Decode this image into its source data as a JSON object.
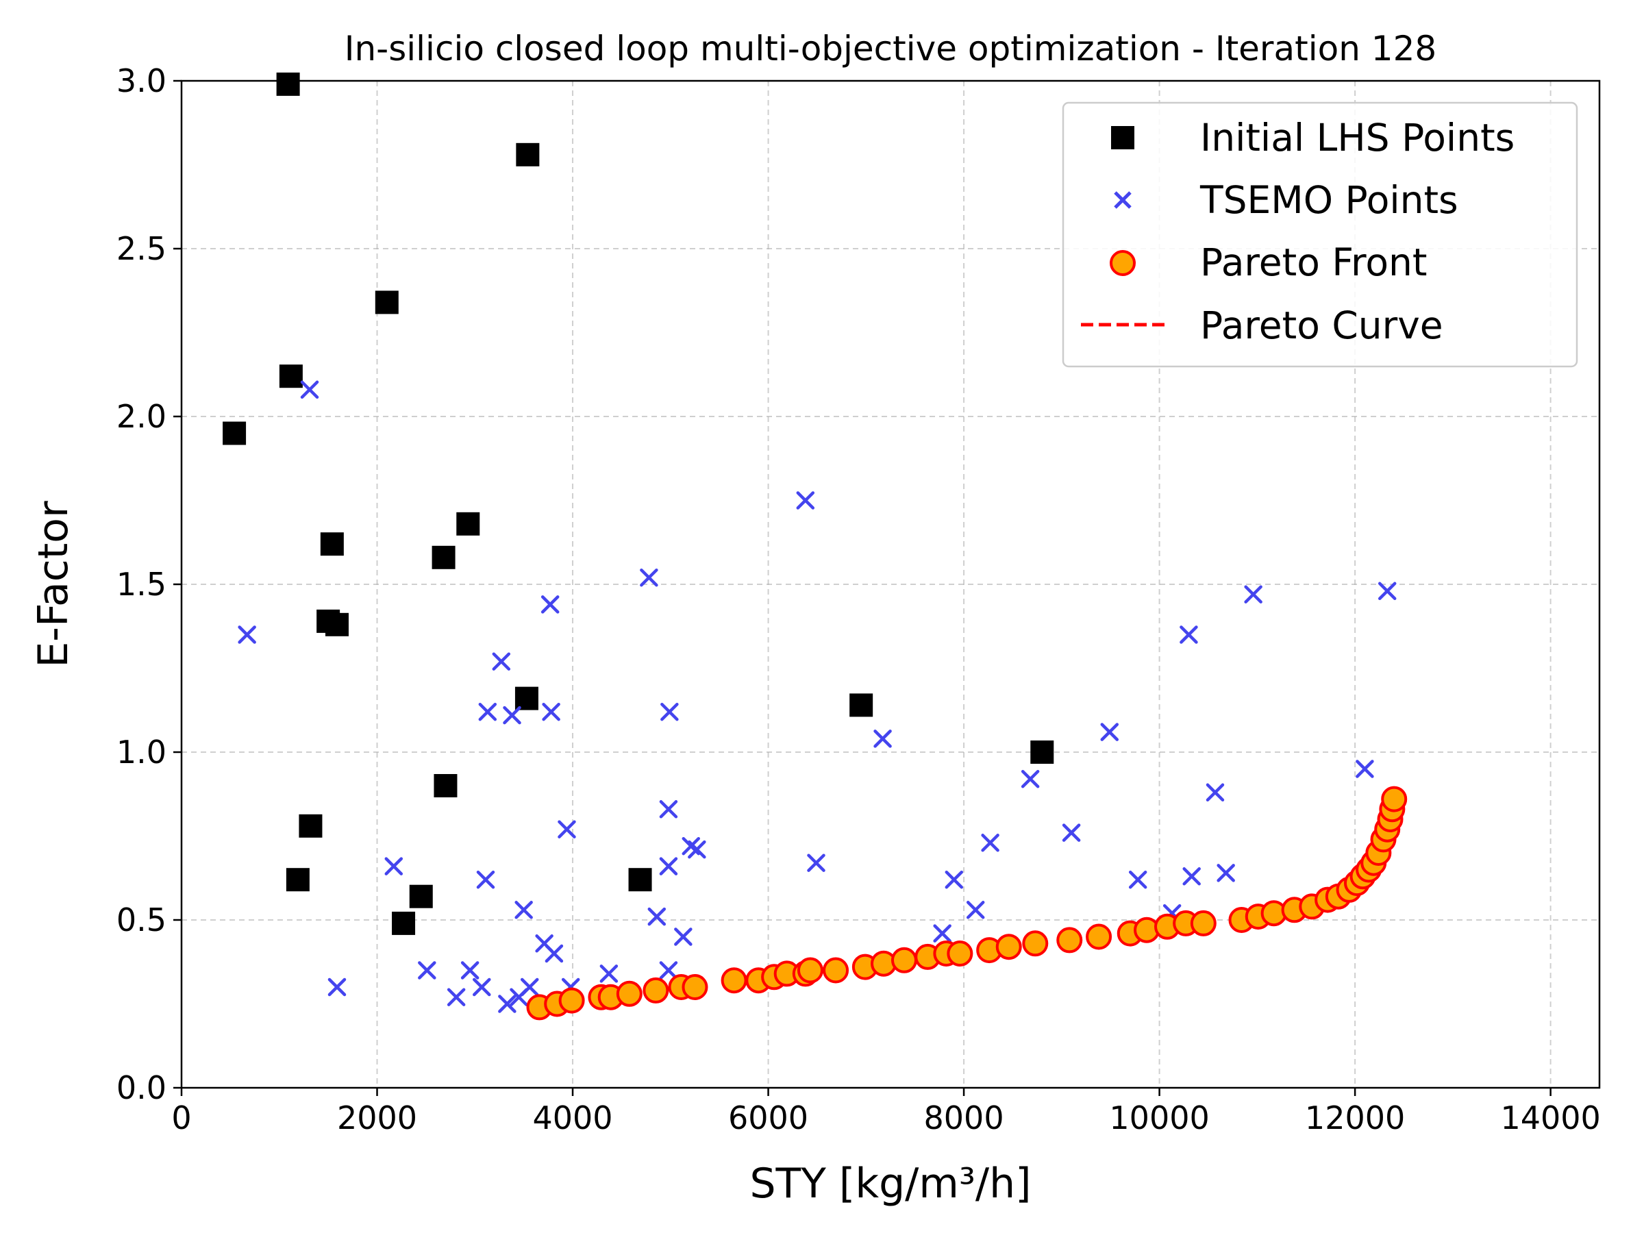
{
  "chart_data": {
    "type": "scatter",
    "title": "In-silicio closed loop multi-objective optimization - Iteration 128",
    "xlabel": "STY [kg/m³/h]",
    "ylabel": "E-Factor",
    "xlim": [
      0,
      14500
    ],
    "ylim": [
      0,
      3.0
    ],
    "xticks": [
      0,
      2000,
      4000,
      6000,
      8000,
      10000,
      12000,
      14000
    ],
    "yticks": [
      0.0,
      0.5,
      1.0,
      1.5,
      2.0,
      2.5,
      3.0
    ],
    "xtick_labels": [
      "0",
      "2000",
      "4000",
      "6000",
      "8000",
      "10000",
      "12000",
      "14000"
    ],
    "ytick_labels": [
      "0.0",
      "0.5",
      "1.0",
      "1.5",
      "2.0",
      "2.5",
      "3.0"
    ],
    "grid": true,
    "legend_position": "top-right",
    "series": [
      {
        "name": "Initial LHS Points",
        "marker": "square",
        "color": "#000000",
        "points": [
          [
            1090,
            2.99
          ],
          [
            3540,
            2.78
          ],
          [
            2100,
            2.34
          ],
          [
            1120,
            2.12
          ],
          [
            540,
            1.95
          ],
          [
            2930,
            1.68
          ],
          [
            1540,
            1.62
          ],
          [
            2680,
            1.58
          ],
          [
            1500,
            1.39
          ],
          [
            1590,
            1.38
          ],
          [
            3530,
            1.16
          ],
          [
            6950,
            1.14
          ],
          [
            8800,
            1.0
          ],
          [
            2700,
            0.9
          ],
          [
            1320,
            0.78
          ],
          [
            1190,
            0.62
          ],
          [
            4690,
            0.62
          ],
          [
            2450,
            0.57
          ],
          [
            2270,
            0.49
          ]
        ]
      },
      {
        "name": "TSEMO Points",
        "marker": "x",
        "color": "#4444ee",
        "points": [
          [
            1310,
            2.08
          ],
          [
            670,
            1.35
          ],
          [
            6380,
            1.75
          ],
          [
            4780,
            1.52
          ],
          [
            3770,
            1.44
          ],
          [
            3270,
            1.27
          ],
          [
            3130,
            1.12
          ],
          [
            3380,
            1.11
          ],
          [
            3780,
            1.12
          ],
          [
            4990,
            1.12
          ],
          [
            7170,
            1.04
          ],
          [
            3940,
            0.77
          ],
          [
            4980,
            0.83
          ],
          [
            5210,
            0.72
          ],
          [
            5270,
            0.71
          ],
          [
            4980,
            0.66
          ],
          [
            6490,
            0.67
          ],
          [
            2170,
            0.66
          ],
          [
            3110,
            0.62
          ],
          [
            3500,
            0.53
          ],
          [
            4860,
            0.51
          ],
          [
            5130,
            0.45
          ],
          [
            3710,
            0.43
          ],
          [
            3810,
            0.4
          ],
          [
            1590,
            0.3
          ],
          [
            2510,
            0.35
          ],
          [
            2950,
            0.35
          ],
          [
            3070,
            0.3
          ],
          [
            2810,
            0.27
          ],
          [
            3330,
            0.25
          ],
          [
            3450,
            0.27
          ],
          [
            3560,
            0.3
          ],
          [
            3980,
            0.3
          ],
          [
            4370,
            0.34
          ],
          [
            4980,
            0.35
          ],
          [
            7780,
            0.46
          ],
          [
            7900,
            0.62
          ],
          [
            8120,
            0.53
          ],
          [
            8270,
            0.73
          ],
          [
            8680,
            0.92
          ],
          [
            9100,
            0.76
          ],
          [
            9490,
            1.06
          ],
          [
            9780,
            0.62
          ],
          [
            10130,
            0.52
          ],
          [
            10300,
            1.35
          ],
          [
            10330,
            0.63
          ],
          [
            10570,
            0.88
          ],
          [
            10680,
            0.64
          ],
          [
            10960,
            1.47
          ],
          [
            12100,
            0.95
          ],
          [
            12330,
            1.48
          ]
        ]
      },
      {
        "name": "Pareto Front",
        "marker": "circle",
        "color": "#ffa500",
        "edge_color": "#ff0000",
        "points": [
          [
            3660,
            0.24
          ],
          [
            3840,
            0.25
          ],
          [
            3990,
            0.26
          ],
          [
            4290,
            0.27
          ],
          [
            4390,
            0.27
          ],
          [
            4580,
            0.28
          ],
          [
            4850,
            0.29
          ],
          [
            5110,
            0.3
          ],
          [
            5250,
            0.3
          ],
          [
            5650,
            0.32
          ],
          [
            5900,
            0.32
          ],
          [
            6060,
            0.33
          ],
          [
            6190,
            0.34
          ],
          [
            6380,
            0.34
          ],
          [
            6430,
            0.35
          ],
          [
            6690,
            0.35
          ],
          [
            6990,
            0.36
          ],
          [
            7180,
            0.37
          ],
          [
            7390,
            0.38
          ],
          [
            7630,
            0.39
          ],
          [
            7820,
            0.4
          ],
          [
            7960,
            0.4
          ],
          [
            8260,
            0.41
          ],
          [
            8460,
            0.42
          ],
          [
            8730,
            0.43
          ],
          [
            9080,
            0.44
          ],
          [
            9380,
            0.45
          ],
          [
            9700,
            0.46
          ],
          [
            9870,
            0.47
          ],
          [
            10080,
            0.48
          ],
          [
            10270,
            0.49
          ],
          [
            10450,
            0.49
          ],
          [
            10840,
            0.5
          ],
          [
            11010,
            0.51
          ],
          [
            11170,
            0.52
          ],
          [
            11380,
            0.53
          ],
          [
            11560,
            0.54
          ],
          [
            11720,
            0.56
          ],
          [
            11830,
            0.57
          ],
          [
            11940,
            0.59
          ],
          [
            12020,
            0.61
          ],
          [
            12080,
            0.63
          ],
          [
            12140,
            0.65
          ],
          [
            12190,
            0.67
          ],
          [
            12240,
            0.7
          ],
          [
            12290,
            0.74
          ],
          [
            12330,
            0.77
          ],
          [
            12360,
            0.8
          ],
          [
            12380,
            0.83
          ],
          [
            12400,
            0.86
          ]
        ]
      },
      {
        "name": "Pareto Curve",
        "marker": "dashed-line",
        "color": "#ff0000",
        "points": []
      }
    ]
  }
}
